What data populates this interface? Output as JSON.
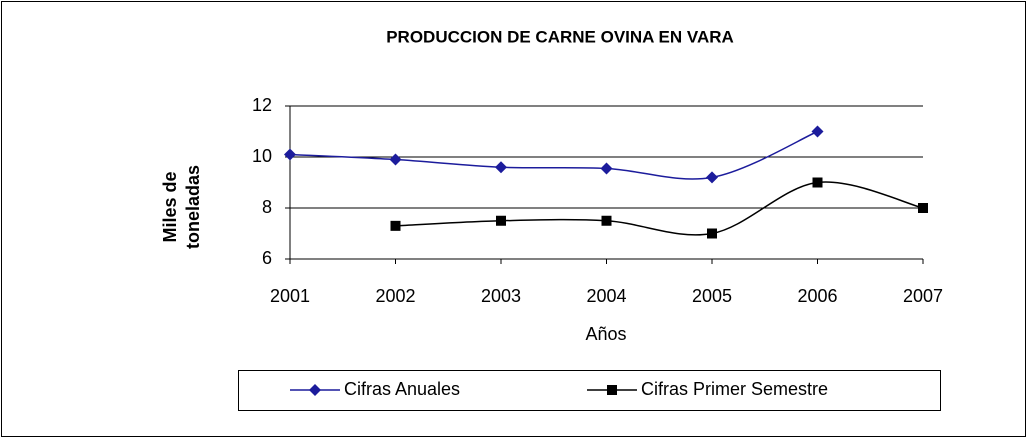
{
  "chart_data": {
    "type": "line",
    "title": "PRODUCCION DE CARNE OVINA EN VARA",
    "y_label": [
      "Miles de",
      "toneladas"
    ],
    "x_label": "Años",
    "categories": [
      "2001",
      "2002",
      "2003",
      "2004",
      "2005",
      "2006",
      "2007"
    ],
    "series": [
      {
        "name": "Cifras Anuales",
        "color": "#1c1c9c",
        "marker": "diamond",
        "values": [
          10.1,
          9.9,
          9.6,
          9.55,
          9.2,
          11.0,
          null
        ]
      },
      {
        "name": "Cifras Primer Semestre",
        "color": "#000000",
        "marker": "square",
        "values": [
          null,
          7.3,
          7.5,
          7.5,
          7.0,
          9.0,
          8.0
        ]
      }
    ],
    "ylim": [
      6,
      12
    ],
    "yticks": [
      6,
      8,
      10,
      12
    ],
    "grid": true,
    "smooth": true,
    "legend": "bottom"
  }
}
